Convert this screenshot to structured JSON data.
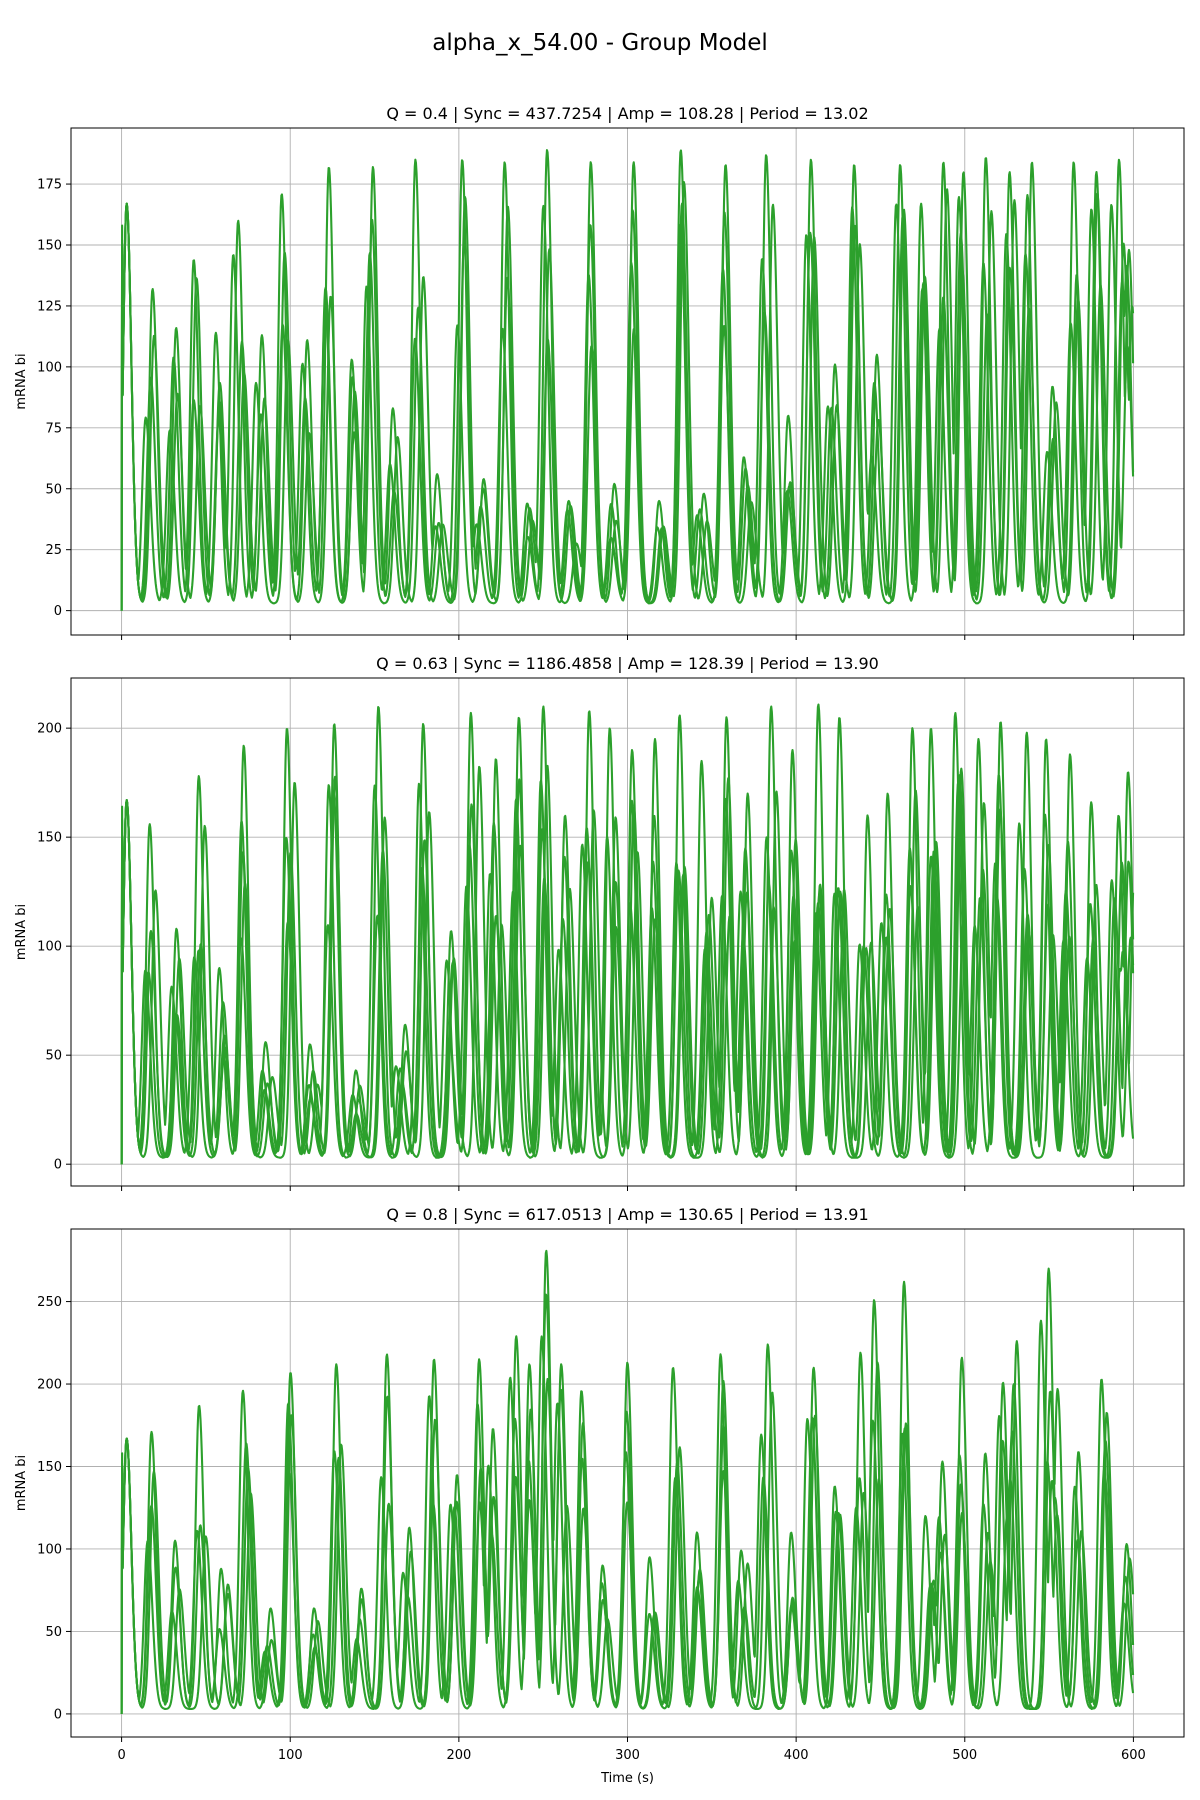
{
  "figure": {
    "suptitle": "alpha_x_54.00 - Group Model",
    "line_color": "#2ca02c",
    "grid": true,
    "x_axis_label": "Time (s)"
  },
  "chart_data": [
    {
      "type": "line",
      "title": "Q = 0.4 | Sync = 437.7254 | Amp = 108.28 | Period = 13.02",
      "xlabel": "",
      "ylabel": "mRNA bi",
      "xlim": [
        -30,
        630
      ],
      "ylim": [
        -10,
        198
      ],
      "xticks": [
        0,
        100,
        200,
        300,
        400,
        500,
        600
      ],
      "yticks": [
        0,
        25,
        50,
        75,
        100,
        125,
        150,
        175
      ],
      "show_xtick_labels": false,
      "baseline_min": 3,
      "series_count": 4,
      "peaks": [
        {
          "t": 3,
          "h": 167
        },
        {
          "t": 18,
          "h": 132
        },
        {
          "t": 31,
          "h": 116
        },
        {
          "t": 44,
          "h": 144
        },
        {
          "t": 57,
          "h": 114
        },
        {
          "t": 70,
          "h": 160
        },
        {
          "t": 83,
          "h": 113
        },
        {
          "t": 96,
          "h": 171
        },
        {
          "t": 109,
          "h": 111
        },
        {
          "t": 122,
          "h": 182
        },
        {
          "t": 136,
          "h": 103
        },
        {
          "t": 149,
          "h": 182
        },
        {
          "t": 162,
          "h": 83
        },
        {
          "t": 175,
          "h": 185
        },
        {
          "t": 188,
          "h": 56
        },
        {
          "t": 201,
          "h": 185
        },
        {
          "t": 214,
          "h": 54
        },
        {
          "t": 227,
          "h": 184
        },
        {
          "t": 240,
          "h": 44
        },
        {
          "t": 253,
          "h": 189
        },
        {
          "t": 266,
          "h": 45
        },
        {
          "t": 279,
          "h": 184
        },
        {
          "t": 292,
          "h": 52
        },
        {
          "t": 305,
          "h": 184
        },
        {
          "t": 318,
          "h": 45
        },
        {
          "t": 331,
          "h": 189
        },
        {
          "t": 344,
          "h": 48
        },
        {
          "t": 357,
          "h": 183
        },
        {
          "t": 370,
          "h": 63
        },
        {
          "t": 383,
          "h": 187
        },
        {
          "t": 396,
          "h": 80
        },
        {
          "t": 409,
          "h": 185
        },
        {
          "t": 422,
          "h": 101
        },
        {
          "t": 435,
          "h": 183
        },
        {
          "t": 448,
          "h": 105
        },
        {
          "t": 461,
          "h": 183
        },
        {
          "t": 474,
          "h": 167
        },
        {
          "t": 487,
          "h": 184
        },
        {
          "t": 500,
          "h": 180
        },
        {
          "t": 513,
          "h": 186
        },
        {
          "t": 526,
          "h": 180
        },
        {
          "t": 539,
          "h": 184
        },
        {
          "t": 552,
          "h": 92
        },
        {
          "t": 565,
          "h": 184
        },
        {
          "t": 578,
          "h": 180
        },
        {
          "t": 591,
          "h": 185
        },
        {
          "t": 598,
          "h": 148
        }
      ]
    },
    {
      "type": "line",
      "title": "Q = 0.63 | Sync = 1186.4858 | Amp = 128.39 | Period = 13.90",
      "xlabel": "",
      "ylabel": "mRNA bi",
      "xlim": [
        -30,
        630
      ],
      "ylim": [
        -10,
        223
      ],
      "xticks": [
        0,
        100,
        200,
        300,
        400,
        500,
        600
      ],
      "yticks": [
        0,
        50,
        100,
        150,
        200
      ],
      "show_xtick_labels": false,
      "baseline_min": 3,
      "series_count": 5,
      "peaks": [
        {
          "t": 3,
          "h": 167
        },
        {
          "t": 18,
          "h": 156
        },
        {
          "t": 32,
          "h": 108
        },
        {
          "t": 45,
          "h": 178
        },
        {
          "t": 59,
          "h": 90
        },
        {
          "t": 72,
          "h": 192
        },
        {
          "t": 86,
          "h": 56
        },
        {
          "t": 99,
          "h": 200
        },
        {
          "t": 113,
          "h": 55
        },
        {
          "t": 126,
          "h": 202
        },
        {
          "t": 140,
          "h": 43
        },
        {
          "t": 153,
          "h": 210
        },
        {
          "t": 167,
          "h": 64
        },
        {
          "t": 180,
          "h": 202
        },
        {
          "t": 194,
          "h": 107
        },
        {
          "t": 208,
          "h": 207
        },
        {
          "t": 221,
          "h": 186
        },
        {
          "t": 235,
          "h": 205
        },
        {
          "t": 249,
          "h": 210
        },
        {
          "t": 262,
          "h": 160
        },
        {
          "t": 276,
          "h": 208
        },
        {
          "t": 290,
          "h": 200
        },
        {
          "t": 303,
          "h": 190
        },
        {
          "t": 317,
          "h": 195
        },
        {
          "t": 331,
          "h": 206
        },
        {
          "t": 345,
          "h": 185
        },
        {
          "t": 358,
          "h": 205
        },
        {
          "t": 372,
          "h": 170
        },
        {
          "t": 386,
          "h": 210
        },
        {
          "t": 399,
          "h": 190
        },
        {
          "t": 413,
          "h": 211
        },
        {
          "t": 427,
          "h": 205
        },
        {
          "t": 441,
          "h": 160
        },
        {
          "t": 454,
          "h": 170
        },
        {
          "t": 468,
          "h": 200
        },
        {
          "t": 481,
          "h": 200
        },
        {
          "t": 495,
          "h": 207
        },
        {
          "t": 509,
          "h": 195
        },
        {
          "t": 522,
          "h": 203
        },
        {
          "t": 536,
          "h": 198
        },
        {
          "t": 549,
          "h": 195
        },
        {
          "t": 563,
          "h": 188
        },
        {
          "t": 576,
          "h": 166
        },
        {
          "t": 590,
          "h": 160
        },
        {
          "t": 598,
          "h": 180
        }
      ]
    },
    {
      "type": "line",
      "title": "Q = 0.8 | Sync = 617.0513 | Amp = 130.65 | Period = 13.91",
      "xlabel": "Time (s)",
      "ylabel": "mRNA bi",
      "xlim": [
        -30,
        630
      ],
      "ylim": [
        -14,
        294
      ],
      "xticks": [
        0,
        100,
        200,
        300,
        400,
        500,
        600
      ],
      "yticks": [
        0,
        50,
        100,
        150,
        200,
        250
      ],
      "show_xtick_labels": true,
      "baseline_min": 3,
      "series_count": 4,
      "peaks": [
        {
          "t": 3,
          "h": 167
        },
        {
          "t": 18,
          "h": 171
        },
        {
          "t": 32,
          "h": 105
        },
        {
          "t": 46,
          "h": 187
        },
        {
          "t": 60,
          "h": 88
        },
        {
          "t": 73,
          "h": 196
        },
        {
          "t": 87,
          "h": 64
        },
        {
          "t": 101,
          "h": 207
        },
        {
          "t": 115,
          "h": 64
        },
        {
          "t": 128,
          "h": 212
        },
        {
          "t": 142,
          "h": 76
        },
        {
          "t": 156,
          "h": 218
        },
        {
          "t": 170,
          "h": 113
        },
        {
          "t": 184,
          "h": 215
        },
        {
          "t": 198,
          "h": 145
        },
        {
          "t": 212,
          "h": 215
        },
        {
          "t": 219,
          "h": 173
        },
        {
          "t": 233,
          "h": 229
        },
        {
          "t": 243,
          "h": 212
        },
        {
          "t": 252,
          "h": 281
        },
        {
          "t": 260,
          "h": 212
        },
        {
          "t": 273,
          "h": 196
        },
        {
          "t": 286,
          "h": 90
        },
        {
          "t": 300,
          "h": 213
        },
        {
          "t": 314,
          "h": 95
        },
        {
          "t": 327,
          "h": 210
        },
        {
          "t": 341,
          "h": 110
        },
        {
          "t": 355,
          "h": 218
        },
        {
          "t": 368,
          "h": 99
        },
        {
          "t": 382,
          "h": 224
        },
        {
          "t": 396,
          "h": 110
        },
        {
          "t": 410,
          "h": 210
        },
        {
          "t": 424,
          "h": 138
        },
        {
          "t": 437,
          "h": 219
        },
        {
          "t": 447,
          "h": 251
        },
        {
          "t": 464,
          "h": 262
        },
        {
          "t": 478,
          "h": 120
        },
        {
          "t": 486,
          "h": 153
        },
        {
          "t": 499,
          "h": 216
        },
        {
          "t": 513,
          "h": 158
        },
        {
          "t": 522,
          "h": 201
        },
        {
          "t": 530,
          "h": 226
        },
        {
          "t": 549,
          "h": 270
        },
        {
          "t": 555,
          "h": 197
        },
        {
          "t": 567,
          "h": 159
        },
        {
          "t": 581,
          "h": 203
        },
        {
          "t": 596,
          "h": 103
        }
      ]
    }
  ]
}
